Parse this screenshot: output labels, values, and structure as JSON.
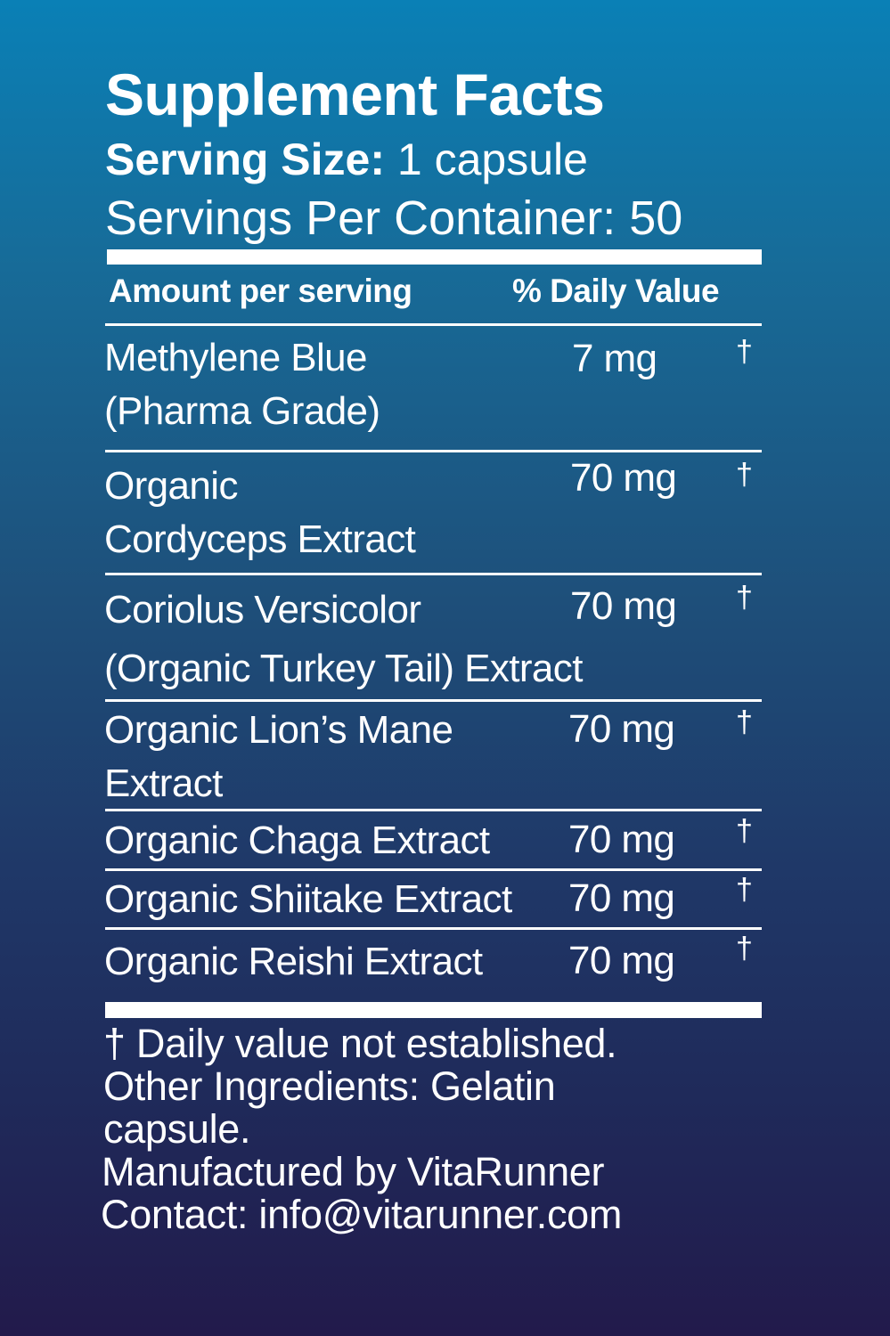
{
  "title": "Supplement Facts",
  "serving_size_label": "Serving Size:",
  "serving_size_value": " 1 capsule",
  "servings_per_container": "Servings Per Container: 50",
  "header": {
    "amount": "Amount per serving",
    "daily_value": "% Daily Value"
  },
  "ingredients": [
    {
      "name_line1": "Methylene Blue",
      "name_line2": "(Pharma Grade)",
      "amount": "7 mg",
      "dv": "†"
    },
    {
      "name_line1": "Organic",
      "name_line2": "Cordyceps Extract",
      "amount": "70 mg",
      "dv": "†"
    },
    {
      "name_line1": "Coriolus Versicolor",
      "name_line2": "(Organic Turkey Tail) Extract",
      "amount": "70 mg",
      "dv": "†"
    },
    {
      "name_line1": "Organic Lion’s Mane",
      "name_line2": "Extract",
      "amount": "70 mg",
      "dv": "†"
    },
    {
      "name_line1": "Organic Chaga Extract",
      "amount": "70 mg",
      "dv": "†"
    },
    {
      "name_line1": "Organic Shiitake Extract",
      "amount": "70 mg",
      "dv": "†"
    },
    {
      "name_line1": "Organic Reishi Extract",
      "amount": "70 mg",
      "dv": "†"
    }
  ],
  "footer": {
    "dv_note": "† Daily value not established.",
    "other_line1": "Other Ingredients: Gelatin",
    "other_line2": "capsule.",
    "manufacturer": "Manufactured by VitaRunner",
    "contact": "Contact: info@vitarunner.com"
  },
  "colors": {
    "gradient_top": "#0a80b6",
    "gradient_bottom": "#221a4b",
    "text": "#ffffff"
  }
}
